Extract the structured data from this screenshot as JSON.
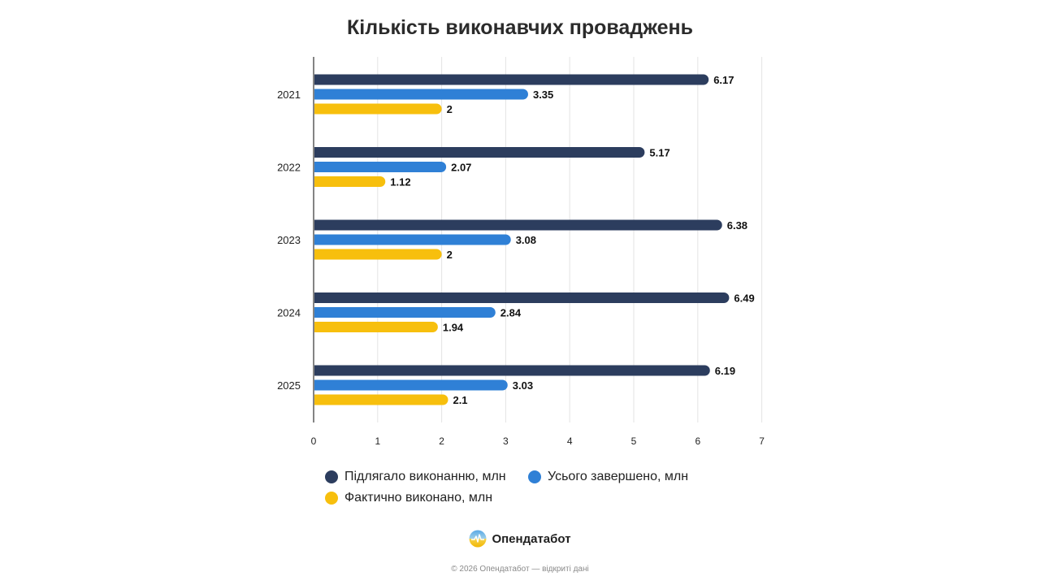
{
  "header": {
    "title": "Кількість виконавчих проваджень"
  },
  "chart_data": {
    "type": "bar",
    "orientation": "horizontal",
    "title": "Кількість виконавчих проваджень",
    "categories": [
      "2021",
      "2022",
      "2023",
      "2024",
      "2025"
    ],
    "series": [
      {
        "name": "Підлягало виконанню, млн",
        "color": "#2c3d5e",
        "values": [
          6.17,
          5.17,
          6.38,
          6.49,
          6.19
        ]
      },
      {
        "name": "Усього завершено, млн",
        "color": "#2f80d6",
        "values": [
          3.35,
          2.07,
          3.08,
          2.84,
          3.03
        ]
      },
      {
        "name": "Фактично виконано, млн",
        "color": "#f7bf0d",
        "values": [
          2,
          1.12,
          2,
          1.94,
          2.1
        ]
      }
    ],
    "x_ticks": [
      "0",
      "1",
      "2",
      "3",
      "4",
      "5",
      "6",
      "7"
    ],
    "xlim": [
      0,
      7
    ],
    "grid": true,
    "data_labels": true,
    "legend_placement": "bottom"
  },
  "brand": {
    "name": "Опендатабот",
    "logo_icon": "opendatabot-logo-icon"
  },
  "footer": {
    "text": "© 2026 Опендатабот — відкриті дані"
  }
}
